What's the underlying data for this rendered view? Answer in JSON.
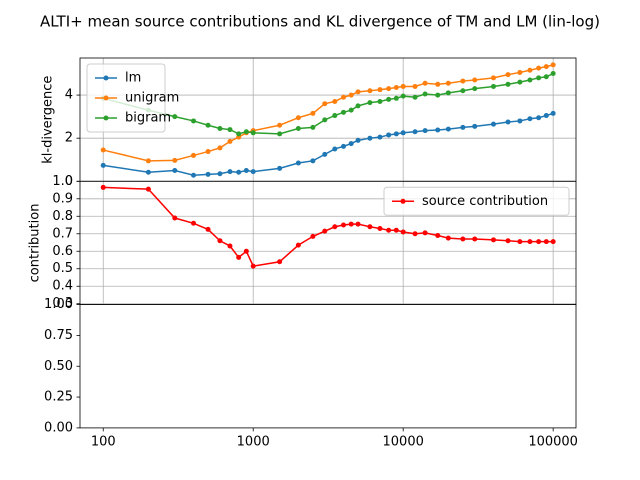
{
  "title": "ALTI+ mean source contributions and KL divergence of TM and LM (lin-log)",
  "chart_data": [
    {
      "type": "line",
      "ylabel": "kl-divergence",
      "xscale": "log",
      "xlim": [
        70,
        142000
      ],
      "xticks": [
        100,
        1000,
        10000,
        100000
      ],
      "ylim": [
        0,
        5.72
      ],
      "yticks": [
        0,
        2,
        4
      ],
      "grid": true,
      "legend": "upper left",
      "x": [
        100,
        200,
        300,
        400,
        500,
        600,
        700,
        800,
        900,
        1000,
        1500,
        2000,
        2500,
        3000,
        3500,
        4000,
        4500,
        5000,
        6000,
        7000,
        8000,
        9000,
        10000,
        12000,
        14000,
        17000,
        20000,
        25000,
        30000,
        40000,
        50000,
        60000,
        70000,
        80000,
        90000,
        100000
      ],
      "series": [
        {
          "name": "lm",
          "color": "#1f77b4",
          "values": [
            0.74,
            0.42,
            0.5,
            0.28,
            0.32,
            0.35,
            0.45,
            0.42,
            0.5,
            0.45,
            0.6,
            0.85,
            0.95,
            1.25,
            1.5,
            1.62,
            1.75,
            1.9,
            2.0,
            2.05,
            2.15,
            2.2,
            2.25,
            2.3,
            2.35,
            2.38,
            2.42,
            2.5,
            2.55,
            2.65,
            2.75,
            2.8,
            2.9,
            2.95,
            3.05,
            3.15
          ]
        },
        {
          "name": "unigram",
          "color": "#ff7f0e",
          "values": [
            1.45,
            0.95,
            0.97,
            1.2,
            1.38,
            1.55,
            1.85,
            2.05,
            2.25,
            2.35,
            2.6,
            2.95,
            3.15,
            3.6,
            3.7,
            3.9,
            4.0,
            4.15,
            4.2,
            4.25,
            4.3,
            4.35,
            4.4,
            4.4,
            4.55,
            4.5,
            4.55,
            4.65,
            4.7,
            4.8,
            4.95,
            5.05,
            5.15,
            5.25,
            5.32,
            5.4
          ]
        },
        {
          "name": "bigram",
          "color": "#2ca02c",
          "values": [
            3.85,
            3.3,
            3.0,
            2.8,
            2.6,
            2.45,
            2.4,
            2.2,
            2.3,
            2.25,
            2.2,
            2.45,
            2.5,
            2.85,
            3.05,
            3.2,
            3.3,
            3.5,
            3.65,
            3.7,
            3.8,
            3.85,
            3.95,
            3.9,
            4.05,
            4.0,
            4.1,
            4.2,
            4.3,
            4.4,
            4.5,
            4.6,
            4.7,
            4.8,
            4.85,
            5.0
          ]
        }
      ]
    },
    {
      "type": "line",
      "ylabel": "contribution",
      "xscale": "log",
      "xlim": [
        70,
        142000
      ],
      "xticks": [
        100,
        1000,
        10000,
        100000
      ],
      "ylim": [
        0.295,
        1.0
      ],
      "yticks": [
        0.3,
        0.4,
        0.5,
        0.6,
        0.7,
        0.8,
        0.9,
        {
          "value": 1,
          "label": "1.0"
        }
      ],
      "grid": true,
      "legend": "upper right",
      "x": [
        100,
        200,
        300,
        400,
        500,
        600,
        700,
        800,
        900,
        1000,
        1500,
        2000,
        2500,
        3000,
        3500,
        4000,
        4500,
        5000,
        6000,
        7000,
        8000,
        9000,
        10000,
        12000,
        14000,
        17000,
        20000,
        25000,
        30000,
        40000,
        50000,
        60000,
        70000,
        80000,
        90000,
        100000
      ],
      "series": [
        {
          "name": "source contribution",
          "color": "#ff0000",
          "values": [
            0.965,
            0.955,
            0.79,
            0.76,
            0.725,
            0.66,
            0.63,
            0.565,
            0.6,
            0.515,
            0.54,
            0.635,
            0.685,
            0.715,
            0.74,
            0.75,
            0.755,
            0.755,
            0.74,
            0.73,
            0.72,
            0.72,
            0.71,
            0.7,
            0.705,
            0.69,
            0.675,
            0.67,
            0.67,
            0.665,
            0.66,
            0.655,
            0.655,
            0.655,
            0.655,
            0.655
          ]
        }
      ]
    },
    {
      "type": "line",
      "xscale": "log",
      "xlim": [
        70,
        142000
      ],
      "xticks": [
        100,
        1000,
        10000,
        100000
      ],
      "ylim": [
        0,
        1
      ],
      "yticks": [
        {
          "value": 0,
          "label": "0.00"
        },
        {
          "value": 0.25,
          "label": "0.25"
        },
        {
          "value": 0.5,
          "label": "0.50"
        },
        {
          "value": 0.75,
          "label": "0.75"
        },
        {
          "value": 1,
          "label": "1.00"
        }
      ],
      "grid": false,
      "series": []
    }
  ]
}
